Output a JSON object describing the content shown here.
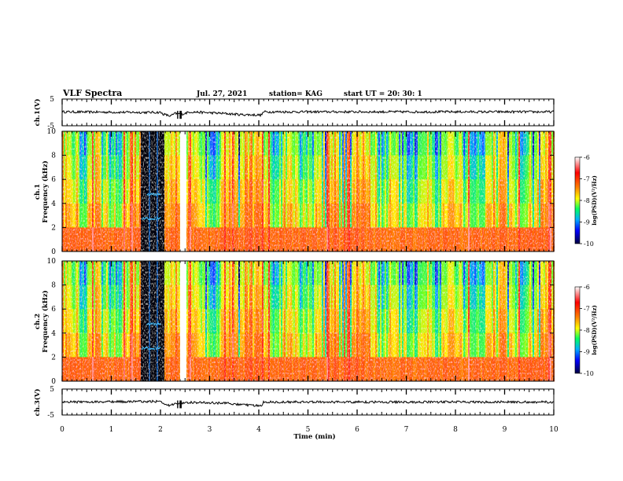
{
  "header": {
    "title": "VLF Spectra",
    "date": "Jul. 27, 2021",
    "station": "station= KAG",
    "start": "start  UT =   20: 30: 1"
  },
  "chart_data": {
    "type": "heatmap",
    "xlabel": "Time  (min)",
    "xlim": [
      0,
      10
    ],
    "xticks": [
      "0",
      "1",
      "2",
      "3",
      "4",
      "5",
      "6",
      "7",
      "8",
      "9",
      "10"
    ],
    "colorbar": {
      "label": "log(PSD)(V²/Hz)",
      "range": [
        -10,
        -6
      ],
      "ticks": [
        "-6",
        "-7",
        "-8",
        "-9",
        "-10"
      ],
      "colors": [
        "#000080",
        "#0000ff",
        "#00a0ff",
        "#00ff80",
        "#80ff00",
        "#ffff00",
        "#ff8000",
        "#ff0000",
        "#ffffff"
      ]
    },
    "panels": [
      {
        "kind": "waveform",
        "ylabel": "ch.1(V)",
        "ylim": [
          -5,
          5
        ],
        "yticks": [
          "5",
          "-5"
        ],
        "trace": [
          [
            0,
            0.2
          ],
          [
            1.6,
            0.0
          ],
          [
            2.0,
            0.0
          ],
          [
            2.05,
            -0.6
          ],
          [
            2.2,
            -1.4
          ],
          [
            2.3,
            -0.4
          ],
          [
            2.45,
            -0.6
          ],
          [
            2.6,
            0.2
          ],
          [
            3.3,
            -0.4
          ],
          [
            3.6,
            -0.8
          ],
          [
            4.05,
            -1.0
          ],
          [
            4.1,
            0.2
          ],
          [
            10,
            0.2
          ]
        ]
      },
      {
        "kind": "spectrogram",
        "ylabel": "ch.1\nFrequency (kHz)",
        "ylim": [
          0,
          10
        ],
        "yticks": [
          "0",
          "2",
          "4",
          "6",
          "8",
          "10"
        ]
      },
      {
        "kind": "spectrogram",
        "ylabel": "ch.2\nFrequency (kHz)",
        "ylim": [
          0,
          10
        ],
        "yticks": [
          "0",
          "2",
          "4",
          "6",
          "8",
          "10"
        ]
      },
      {
        "kind": "waveform",
        "ylabel": "ch.3(V)",
        "ylim": [
          -5,
          5
        ],
        "yticks": [
          "5",
          "-5"
        ],
        "trace": [
          [
            0,
            0.0
          ],
          [
            1.6,
            0.2
          ],
          [
            2.0,
            0.2
          ],
          [
            2.05,
            -0.6
          ],
          [
            2.2,
            -1.4
          ],
          [
            2.3,
            -0.4
          ],
          [
            2.45,
            -0.6
          ],
          [
            2.6,
            -0.2
          ],
          [
            3.3,
            -0.4
          ],
          [
            3.6,
            -1.0
          ],
          [
            4.05,
            -1.4
          ],
          [
            4.1,
            0.0
          ],
          [
            10,
            0.0
          ]
        ]
      }
    ],
    "spectrogram_features": {
      "quiet_background": "red",
      "saturated_block": {
        "x": [
          1.6,
          2.05
        ],
        "color": "#000000"
      },
      "blank_gap": {
        "x": [
          2.38,
          2.5
        ]
      },
      "strong_intervals": [
        [
          0.3,
          0.5
        ],
        [
          0.9,
          1.2
        ],
        [
          2.9,
          3.2
        ],
        [
          4.2,
          4.45
        ],
        [
          4.8,
          5.1
        ],
        [
          6.4,
          6.6
        ],
        [
          6.9,
          7.2
        ],
        [
          7.5,
          7.7
        ],
        [
          8.1,
          8.6
        ],
        [
          9.2,
          9.5
        ]
      ]
    }
  }
}
